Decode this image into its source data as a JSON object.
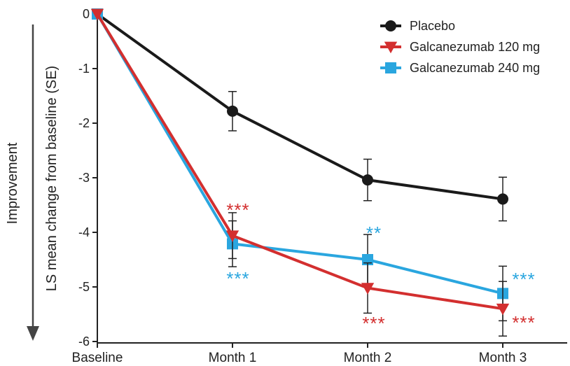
{
  "chart_data": {
    "type": "line",
    "side_label": "Improvement",
    "ylabel": "LS mean change from baseline (SE)",
    "xlabel": "",
    "categories": [
      "Baseline",
      "Month 1",
      "Month 2",
      "Month 3"
    ],
    "ylim": [
      -6,
      0
    ],
    "yticks": [
      "0",
      "-1",
      "-2",
      "-3",
      "-4",
      "-5",
      "-6"
    ],
    "legend_position": "top-right",
    "series": [
      {
        "name": "Placebo",
        "color": "#1a1a1a",
        "marker": "circle",
        "values": [
          0,
          -1.78,
          -3.04,
          -3.39
        ],
        "error": [
          0,
          0.36,
          0.38,
          0.4
        ],
        "sig": [
          "",
          "",
          "",
          ""
        ]
      },
      {
        "name": "Galcanezumab 120 mg",
        "color": "#d32f2f",
        "marker": "triangle-down",
        "values": [
          0,
          -4.06,
          -5.02,
          -5.4
        ],
        "error": [
          0,
          0.42,
          0.46,
          0.5
        ],
        "sig": [
          "",
          "***",
          "***",
          "***"
        ]
      },
      {
        "name": "Galcanezumab 240 mg",
        "color": "#2aa6df",
        "marker": "square",
        "values": [
          0,
          -4.21,
          -4.5,
          -5.12
        ],
        "error": [
          0,
          0.42,
          0.46,
          0.5
        ],
        "sig": [
          "",
          "***",
          "**",
          "***"
        ]
      }
    ]
  }
}
